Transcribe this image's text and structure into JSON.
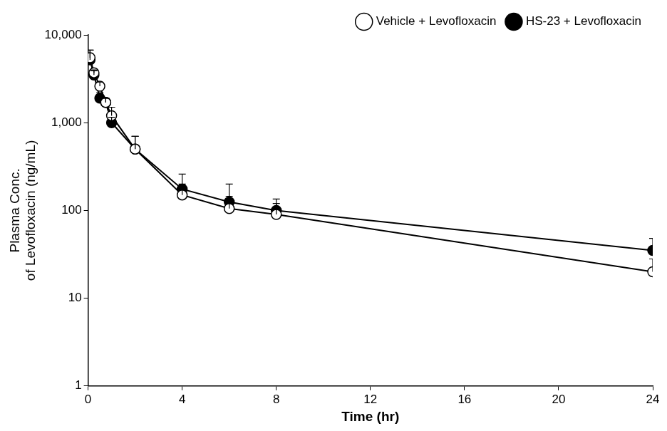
{
  "chart_data": {
    "type": "line",
    "x_label": "Time (hr)",
    "y_label": [
      "Plasma Conc.",
      "of Levofloxacin (ng/mL)"
    ],
    "log": "y",
    "grid": false,
    "legend": "upper right",
    "xlim": [
      0,
      24
    ],
    "xticks": [
      0,
      4,
      8,
      12,
      16,
      20,
      24
    ],
    "ylim": [
      1,
      10000
    ],
    "yticks": [
      1,
      10,
      100,
      {
        "value": 1000,
        "label": "1,000"
      },
      {
        "value": 10000,
        "label": "10,000"
      }
    ],
    "x": [
      0.083,
      0.25,
      0.5,
      0.75,
      1,
      2,
      4,
      6,
      8,
      24
    ],
    "series": [
      {
        "name": "Vehicle + Levofloxacin",
        "color": "#000000",
        "marker": "circle_open",
        "line_style": "solid",
        "values": [
          5500,
          3700,
          2600,
          1700,
          1200,
          500,
          150,
          105,
          90,
          20
        ],
        "error_plus": [
          1200,
          300,
          300,
          200,
          300,
          200,
          50,
          40,
          30,
          8
        ]
      },
      {
        "name": "HS-23 + Levofloxacin",
        "color": "#000000",
        "marker": "circle",
        "line_style": "solid",
        "values": [
          5200,
          3500,
          1900,
          1700,
          1000,
          500,
          175,
          125,
          100,
          35
        ],
        "error_plus": [
          1500,
          400,
          300,
          200,
          150,
          200,
          85,
          75,
          35,
          13
        ]
      }
    ]
  }
}
